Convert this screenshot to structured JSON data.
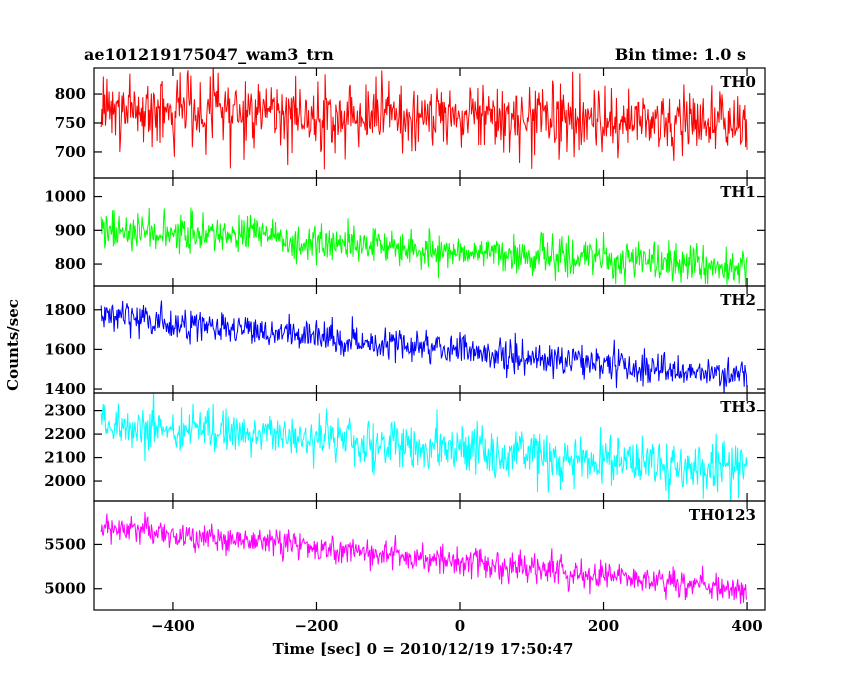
{
  "chart_data": {
    "type": "line",
    "title": "ae101219175047_wam3_trn",
    "bin_time_label": "Bin time: 1.0 s",
    "xlabel": "Time [sec] 0 = 2010/12/19 17:50:47",
    "ylabel": "Counts/sec",
    "xlim": [
      -510,
      425
    ],
    "xticks": [
      -400,
      -200,
      0,
      200,
      400
    ],
    "x_start": -500,
    "x_end": 400,
    "step": 1,
    "grid": false,
    "panels": [
      {
        "name": "TH0",
        "color": "#ff0000",
        "ylim": [
          655,
          845
        ],
        "yticks": [
          700,
          750,
          800
        ],
        "mean_start": 775,
        "mean_end": 745,
        "noise": 28
      },
      {
        "name": "TH1",
        "color": "#00ff00",
        "ylim": [
          735,
          1055
        ],
        "yticks": [
          800,
          900,
          1000
        ],
        "mean_start": 905,
        "mean_end": 790,
        "noise": 28
      },
      {
        "name": "TH2",
        "color": "#0000ff",
        "ylim": [
          1380,
          1920
        ],
        "yticks": [
          1400,
          1600,
          1800
        ],
        "mean_start": 1770,
        "mean_end": 1460,
        "noise": 40
      },
      {
        "name": "TH3",
        "color": "#00ffff",
        "ylim": [
          1915,
          2375
        ],
        "yticks": [
          2000,
          2100,
          2200,
          2300
        ],
        "mean_start": 2250,
        "mean_end": 2040,
        "noise": 50
      },
      {
        "name": "TH0123",
        "color": "#ff00ff",
        "ylim": [
          4760,
          5990
        ],
        "yticks": [
          5000,
          5500
        ],
        "mean_start": 5700,
        "mean_end": 4990,
        "noise": 80
      }
    ]
  }
}
